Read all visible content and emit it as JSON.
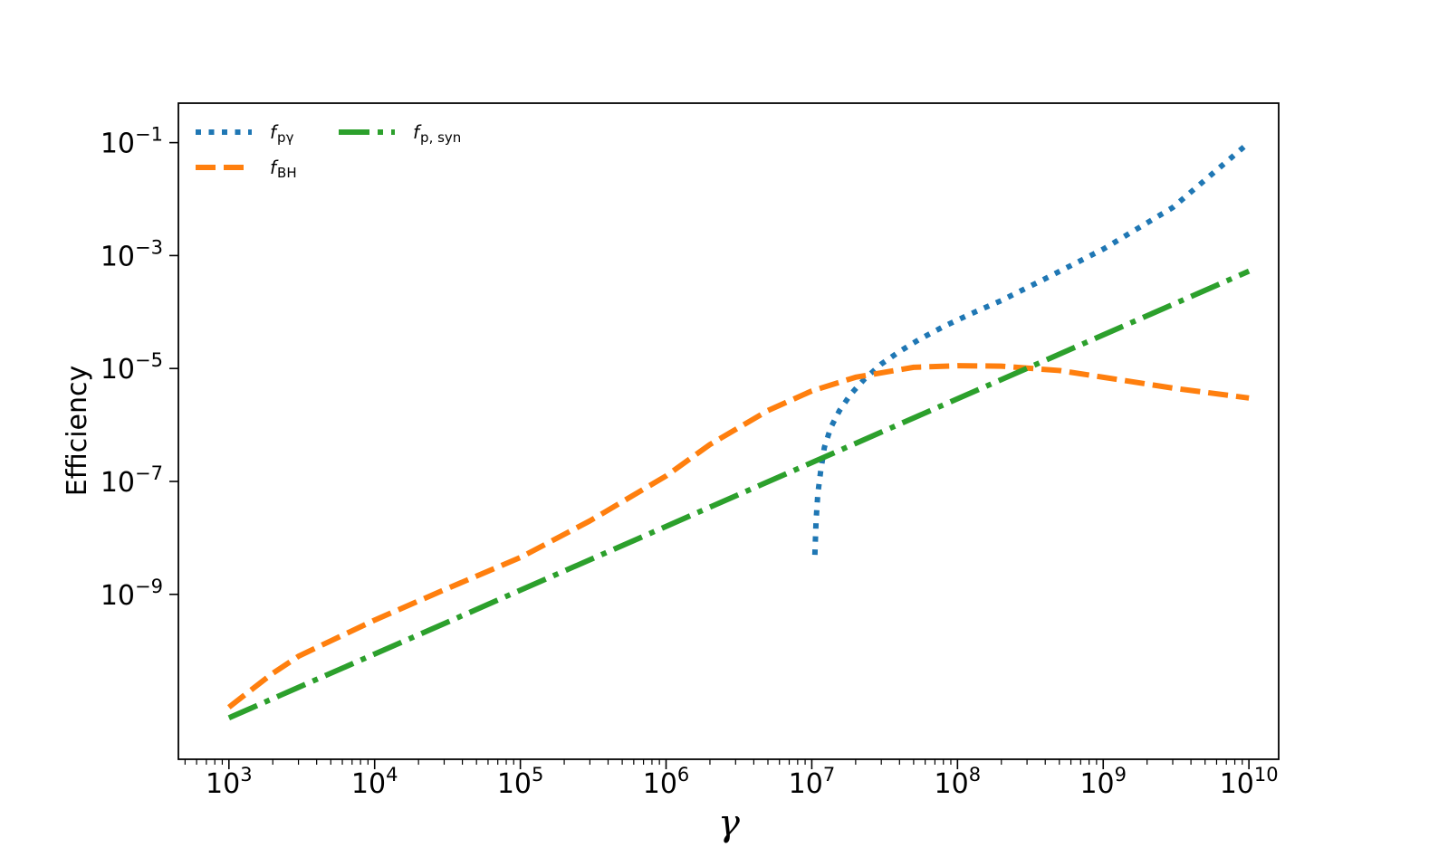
{
  "chart_data": {
    "type": "line",
    "title": "",
    "xlabel": "γ",
    "ylabel": "Efficiency",
    "x_scale": "log",
    "y_scale": "log",
    "xlim": [
      450,
      16000000000
    ],
    "ylim": [
      1.2e-12,
      0.5
    ],
    "x_ticks": [
      {
        "value": 1000,
        "mantissa": "10",
        "exp": "3"
      },
      {
        "value": 10000,
        "mantissa": "10",
        "exp": "4"
      },
      {
        "value": 100000,
        "mantissa": "10",
        "exp": "5"
      },
      {
        "value": 1000000,
        "mantissa": "10",
        "exp": "6"
      },
      {
        "value": 10000000,
        "mantissa": "10",
        "exp": "7"
      },
      {
        "value": 100000000,
        "mantissa": "10",
        "exp": "8"
      },
      {
        "value": 1000000000,
        "mantissa": "10",
        "exp": "9"
      },
      {
        "value": 10000000000,
        "mantissa": "10",
        "exp": "10"
      }
    ],
    "y_ticks": [
      {
        "value": 0.1,
        "mantissa": "10",
        "exp": "−1"
      },
      {
        "value": 0.001,
        "mantissa": "10",
        "exp": "−3"
      },
      {
        "value": 1e-05,
        "mantissa": "10",
        "exp": "−5"
      },
      {
        "value": 1e-07,
        "mantissa": "10",
        "exp": "−7"
      },
      {
        "value": 1e-09,
        "mantissa": "10",
        "exp": "−9"
      }
    ],
    "grid": false,
    "legend": {
      "position": "top-left",
      "columns": 2
    },
    "series": [
      {
        "key": "f_pgamma",
        "name_main": "f",
        "name_sub": "pγ",
        "color": "#1f77b4",
        "style": "dotted",
        "x": [
          10500000,
          10700000,
          11000000,
          11500000,
          12200000,
          13500000,
          15500000,
          18500000,
          23000000,
          30000000,
          40000000,
          55000000,
          80000000,
          120000000,
          200000000,
          400000000,
          1000000000,
          3000000000,
          10000000000
        ],
        "y": [
          5e-09,
          2e-08,
          6e-08,
          1.5e-07,
          4e-07,
          9e-07,
          1.8e-06,
          3.5e-06,
          6.5e-06,
          1.2e-05,
          2e-05,
          3.3e-05,
          5.5e-05,
          9e-05,
          0.00016,
          0.00039,
          0.0013,
          0.0071,
          0.1
        ]
      },
      {
        "key": "f_BH",
        "name_main": "f",
        "name_sub": "BH",
        "color": "#ff7f0e",
        "style": "dashed",
        "x": [
          1000,
          1300,
          2000,
          3000,
          5000,
          10000,
          30000,
          100000,
          300000,
          1000000,
          2000000,
          5000000,
          10000000,
          20000000,
          50000000,
          100000000,
          200000000,
          500000000,
          1000000000,
          3000000000,
          10000000000
        ],
        "y": [
          1e-11,
          1.7e-11,
          4e-11,
          8e-11,
          1.5e-10,
          3.5e-10,
          1.2e-09,
          4.5e-09,
          2e-08,
          1.25e-07,
          4.5e-07,
          1.8e-06,
          4e-06,
          7e-06,
          1.05e-05,
          1.12e-05,
          1.1e-05,
          9.2e-06,
          7e-06,
          4.5e-06,
          3e-06
        ]
      },
      {
        "key": "f_psyn",
        "name_main": "f",
        "name_sub": "p, syn",
        "color": "#2ca02c",
        "style": "dashdot",
        "x": [
          1000,
          10000000000
        ],
        "y": [
          6.5e-12,
          0.00053
        ]
      }
    ]
  }
}
